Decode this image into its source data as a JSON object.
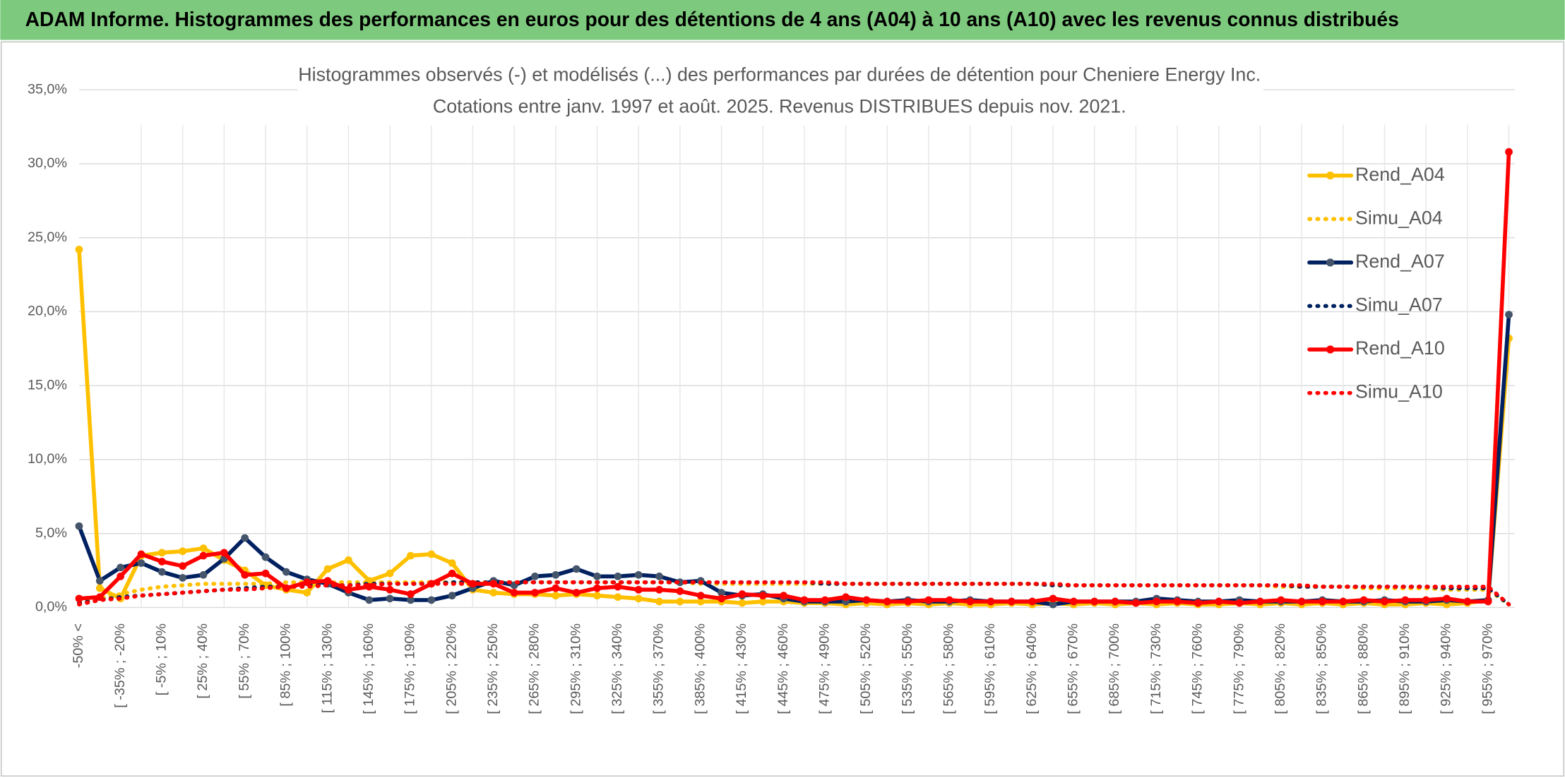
{
  "header": {
    "title": "ADAM Informe. Histogrammes des performances en euros pour des détentions de 4 ans (A04) à 10 ans (A10) avec les revenus connus distribués"
  },
  "chart_data": {
    "type": "line",
    "title": "Histogrammes observés (-) et modélisés (...) des performances par durées de détention pour Cheniere Energy Inc.",
    "subtitle": "Cotations entre janv. 1997 et août. 2025. Revenus DISTRIBUES depuis nov. 2021.",
    "categories": [
      "-50% <",
      null,
      "[ -35% ; -20%",
      null,
      "[ -5% ; 10%",
      null,
      "[ 25% ; 40%",
      null,
      "[ 55% ; 70%",
      null,
      "[ 85% ; 100%",
      null,
      "[ 115% ; 130%",
      null,
      "[ 145% ; 160%",
      null,
      "[ 175% ; 190%",
      null,
      "[ 205% ; 220%",
      null,
      "[ 235% ; 250%",
      null,
      "[ 265% ; 280%",
      null,
      "[ 295% ; 310%",
      null,
      "[ 325% ; 340%",
      null,
      "[ 355% ; 370%",
      null,
      "[ 385% ; 400%",
      null,
      "[ 415% ; 430%",
      null,
      "[ 445% ; 460%",
      null,
      "[ 475% ; 490%",
      null,
      "[ 505% ; 520%",
      null,
      "[ 535% ; 550%",
      null,
      "[ 565% ; 580%",
      null,
      "[ 595% ; 610%",
      null,
      "[ 625% ; 640%",
      null,
      "[ 655% ; 670%",
      null,
      "[ 685% ; 700%",
      null,
      "[ 715% ; 730%",
      null,
      "[ 745% ; 760%",
      null,
      "[ 775% ; 790%",
      null,
      "[ 805% ; 820%",
      null,
      "[ 835% ; 850%",
      null,
      "[ 865% ; 880%",
      null,
      "[ 895% ; 910%",
      null,
      "[ 925% ; 940%",
      null,
      "[ 955% ; 970%",
      null
    ],
    "series": [
      {
        "name": "Rend_A04",
        "color": "#FFC000",
        "marker_color": "#FFC000",
        "line_style": "solid",
        "markers": true,
        "values": [
          24.2,
          1.3,
          0.6,
          3.5,
          3.7,
          3.8,
          4.0,
          3.2,
          2.5,
          1.5,
          1.2,
          1.0,
          2.6,
          3.2,
          1.8,
          2.3,
          3.5,
          3.6,
          3.0,
          1.2,
          1.0,
          0.9,
          0.9,
          0.8,
          0.9,
          0.8,
          0.7,
          0.6,
          0.4,
          0.4,
          0.4,
          0.4,
          0.3,
          0.4,
          0.4,
          0.3,
          0.3,
          0.2,
          0.3,
          0.2,
          0.3,
          0.2,
          0.3,
          0.2,
          0.2,
          0.3,
          0.2,
          0.3,
          0.2,
          0.3,
          0.2,
          0.3,
          0.2,
          0.3,
          0.2,
          0.2,
          0.3,
          0.2,
          0.3,
          0.2,
          0.3,
          0.2,
          0.3,
          0.2,
          0.2,
          0.3,
          0.2,
          0.3,
          0.5,
          18.2
        ]
      },
      {
        "name": "Simu_A04",
        "color": "#FFC000",
        "line_style": "dotted",
        "markers": false,
        "values": [
          0.4,
          0.6,
          0.9,
          1.2,
          1.4,
          1.5,
          1.6,
          1.6,
          1.6,
          1.6,
          1.7,
          1.7,
          1.7,
          1.7,
          1.7,
          1.7,
          1.7,
          1.7,
          1.7,
          1.7,
          1.7,
          1.7,
          1.7,
          1.7,
          1.7,
          1.7,
          1.7,
          1.7,
          1.7,
          1.7,
          1.6,
          1.6,
          1.6,
          1.6,
          1.6,
          1.6,
          1.6,
          1.6,
          1.6,
          1.6,
          1.6,
          1.6,
          1.6,
          1.6,
          1.6,
          1.6,
          1.6,
          1.5,
          1.5,
          1.5,
          1.5,
          1.5,
          1.5,
          1.5,
          1.5,
          1.5,
          1.5,
          1.5,
          1.4,
          1.4,
          1.4,
          1.4,
          1.3,
          1.3,
          1.3,
          1.3,
          1.2,
          1.2,
          1.2,
          0.2
        ]
      },
      {
        "name": "Rend_A07",
        "color": "#002060",
        "marker_color": "#44546A",
        "line_style": "solid",
        "markers": true,
        "values": [
          5.5,
          1.8,
          2.7,
          3.0,
          2.4,
          2.0,
          2.2,
          3.3,
          4.7,
          3.4,
          2.4,
          1.9,
          1.6,
          1.0,
          0.5,
          0.6,
          0.5,
          0.5,
          0.8,
          1.3,
          1.8,
          1.5,
          2.1,
          2.2,
          2.6,
          2.1,
          2.1,
          2.2,
          2.1,
          1.7,
          1.8,
          1.0,
          0.8,
          0.9,
          0.6,
          0.4,
          0.4,
          0.4,
          0.5,
          0.4,
          0.5,
          0.4,
          0.4,
          0.5,
          0.4,
          0.4,
          0.4,
          0.2,
          0.4,
          0.4,
          0.4,
          0.4,
          0.6,
          0.5,
          0.4,
          0.4,
          0.5,
          0.4,
          0.4,
          0.4,
          0.5,
          0.4,
          0.4,
          0.5,
          0.4,
          0.4,
          0.5,
          0.4,
          0.5,
          19.8
        ]
      },
      {
        "name": "Simu_A07",
        "color": "#002060",
        "line_style": "dotted",
        "markers": false,
        "values": [
          0.3,
          0.5,
          0.7,
          0.8,
          0.9,
          1.0,
          1.1,
          1.2,
          1.3,
          1.4,
          1.4,
          1.5,
          1.5,
          1.5,
          1.6,
          1.6,
          1.6,
          1.6,
          1.7,
          1.7,
          1.7,
          1.7,
          1.7,
          1.7,
          1.7,
          1.7,
          1.7,
          1.7,
          1.7,
          1.7,
          1.7,
          1.7,
          1.7,
          1.7,
          1.7,
          1.7,
          1.6,
          1.6,
          1.6,
          1.6,
          1.6,
          1.6,
          1.6,
          1.6,
          1.6,
          1.6,
          1.6,
          1.5,
          1.5,
          1.5,
          1.5,
          1.5,
          1.5,
          1.5,
          1.5,
          1.5,
          1.5,
          1.5,
          1.5,
          1.4,
          1.4,
          1.4,
          1.4,
          1.4,
          1.4,
          1.4,
          1.3,
          1.3,
          1.3,
          0.2
        ]
      },
      {
        "name": "Rend_A10",
        "color": "#FF0000",
        "marker_color": "#FF0000",
        "line_style": "solid",
        "markers": true,
        "values": [
          0.6,
          0.7,
          2.1,
          3.6,
          3.1,
          2.8,
          3.5,
          3.7,
          2.2,
          2.3,
          1.3,
          1.7,
          1.8,
          1.2,
          1.4,
          1.2,
          0.9,
          1.6,
          2.3,
          1.6,
          1.6,
          1.0,
          1.0,
          1.3,
          1.0,
          1.3,
          1.4,
          1.2,
          1.2,
          1.1,
          0.8,
          0.6,
          0.9,
          0.8,
          0.8,
          0.5,
          0.5,
          0.7,
          0.5,
          0.4,
          0.4,
          0.5,
          0.5,
          0.4,
          0.4,
          0.4,
          0.4,
          0.6,
          0.4,
          0.4,
          0.4,
          0.3,
          0.4,
          0.4,
          0.3,
          0.4,
          0.3,
          0.4,
          0.5,
          0.4,
          0.4,
          0.4,
          0.5,
          0.4,
          0.5,
          0.5,
          0.6,
          0.4,
          0.4,
          30.8
        ]
      },
      {
        "name": "Simu_A10",
        "color": "#FF0000",
        "line_style": "dotted",
        "markers": false,
        "values": [
          0.2,
          0.5,
          0.6,
          0.8,
          0.9,
          1.0,
          1.1,
          1.2,
          1.2,
          1.3,
          1.4,
          1.4,
          1.5,
          1.5,
          1.5,
          1.6,
          1.6,
          1.6,
          1.6,
          1.6,
          1.7,
          1.7,
          1.7,
          1.7,
          1.7,
          1.7,
          1.7,
          1.7,
          1.7,
          1.7,
          1.7,
          1.7,
          1.7,
          1.7,
          1.7,
          1.7,
          1.7,
          1.6,
          1.6,
          1.6,
          1.6,
          1.6,
          1.6,
          1.6,
          1.6,
          1.6,
          1.6,
          1.6,
          1.5,
          1.5,
          1.5,
          1.5,
          1.5,
          1.5,
          1.5,
          1.5,
          1.5,
          1.5,
          1.5,
          1.5,
          1.4,
          1.4,
          1.4,
          1.4,
          1.4,
          1.4,
          1.4,
          1.4,
          1.4,
          0.2
        ]
      }
    ],
    "ylim": [
      0,
      35
    ],
    "yticks": [
      {
        "value": 0,
        "label": "0,0%"
      },
      {
        "value": 5,
        "label": "5,0%"
      },
      {
        "value": 10,
        "label": "10,0%"
      },
      {
        "value": 15,
        "label": "15,0%"
      },
      {
        "value": 20,
        "label": "20,0%"
      },
      {
        "value": 25,
        "label": "25,0%"
      },
      {
        "value": 30,
        "label": "30,0%"
      },
      {
        "value": 35,
        "label": "35,0%"
      }
    ],
    "grid": true,
    "legend": "right"
  }
}
